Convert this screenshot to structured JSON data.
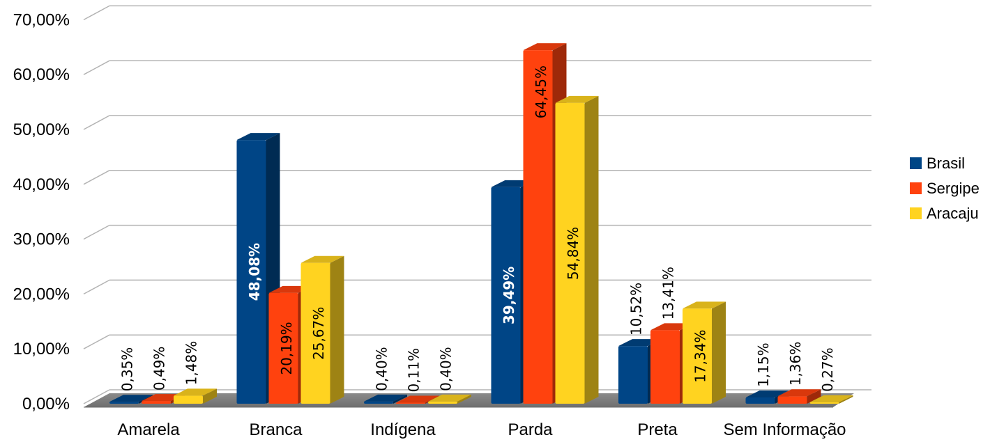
{
  "chart_data": {
    "type": "bar",
    "categories": [
      "Amarela",
      "Branca",
      "Indígena",
      "Parda",
      "Preta",
      "Sem Informação"
    ],
    "series": [
      {
        "name": "Brasil",
        "color": "#004586",
        "values": [
          0.35,
          48.08,
          0.4,
          39.49,
          10.52,
          1.15
        ],
        "labels": [
          "0,35%",
          "48,08%",
          "0,40%",
          "39,49%",
          "10,52%",
          "1,15%"
        ]
      },
      {
        "name": "Sergipe",
        "color": "#ff420e",
        "values": [
          0.49,
          20.19,
          0.11,
          64.45,
          13.41,
          1.36
        ],
        "labels": [
          "0,49%",
          "20,19%",
          "0,11%",
          "64,45%",
          "13,41%",
          "1,36%"
        ]
      },
      {
        "name": "Aracaju",
        "color": "#ffd320",
        "values": [
          1.48,
          25.67,
          0.4,
          54.84,
          17.34,
          0.27
        ],
        "labels": [
          "1,48%",
          "25,67%",
          "0,40%",
          "54,84%",
          "17,34%",
          "0,27%"
        ]
      }
    ],
    "yticks": [
      0,
      10,
      20,
      30,
      40,
      50,
      60,
      70
    ],
    "ytick_labels": [
      "0,00%",
      "10,00%",
      "20,00%",
      "30,00%",
      "40,00%",
      "50,00%",
      "60,00%",
      "70,00%"
    ],
    "ylim": [
      0,
      70
    ],
    "grid": true,
    "style": "3d",
    "legend": "right",
    "title": "",
    "xlabel": "",
    "ylabel": ""
  }
}
